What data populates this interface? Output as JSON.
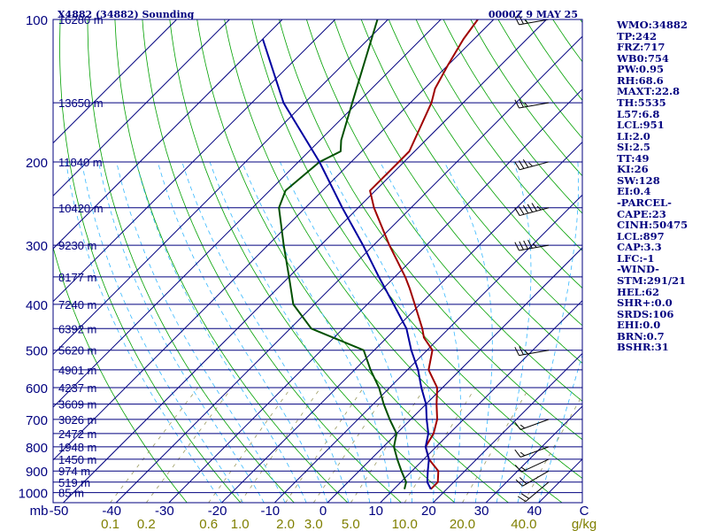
{
  "header": {
    "title": "X4882 (34882) Sounding",
    "time": "0000Z  9 MAY 25"
  },
  "colors": {
    "border": "#00007f",
    "isobar": "#00007f",
    "isotherm": "#00007f",
    "dry_adiabat": "#00a000",
    "moist_adiabat": "#36b8ff",
    "mixing_ratio": "#9a9a60",
    "temperature": "#a00000",
    "dewpoint": "#005000",
    "parcel": "#0000a0",
    "label": "#00007f"
  },
  "chart_data": {
    "type": "line",
    "subtype": "skew-t log-p sounding",
    "title": "X4882 (34882) Sounding",
    "valid_time": "0000Z  9 MAY 25",
    "y_axis": {
      "unit": "mb",
      "scale": "log",
      "range": [
        1050,
        100
      ],
      "ticks": [
        "100",
        "200",
        "300",
        "400",
        "500",
        "600",
        "700",
        "800",
        "900",
        "1000"
      ],
      "tick_values": [
        100,
        200,
        300,
        400,
        500,
        600,
        700,
        800,
        900,
        1000
      ]
    },
    "x_axis": {
      "unit": "C",
      "skewed": true,
      "range": [
        -50,
        50
      ],
      "ticks": [
        "-50",
        "-40",
        "-30",
        "-20",
        "-10",
        "0",
        "10",
        "20",
        "30",
        "40"
      ],
      "tick_values": [
        -50,
        -40,
        -30,
        -20,
        -10,
        0,
        10,
        20,
        30,
        40
      ]
    },
    "mixing_ratio_axis": {
      "unit": "g/kg",
      "ticks": [
        "0.1",
        "0.2",
        "0.6",
        "1.0",
        "2.0",
        "3.0",
        "5.0",
        "10.0",
        "20.0",
        "40.0"
      ],
      "tick_values": [
        0.1,
        0.2,
        0.6,
        1.0,
        2.0,
        3.0,
        5.0,
        10.0,
        20.0,
        40.0
      ]
    },
    "height_labels": [
      {
        "p": 100,
        "label": "16280 m"
      },
      {
        "p": 150,
        "label": "13650 m"
      },
      {
        "p": 200,
        "label": "11840 m"
      },
      {
        "p": 250,
        "label": "10420 m"
      },
      {
        "p": 300,
        "label": "9230 m"
      },
      {
        "p": 350,
        "label": "8177 m"
      },
      {
        "p": 400,
        "label": "7240 m"
      },
      {
        "p": 450,
        "label": "6392 m"
      },
      {
        "p": 500,
        "label": "5620 m"
      },
      {
        "p": 550,
        "label": "4901 m"
      },
      {
        "p": 600,
        "label": "4237 m"
      },
      {
        "p": 650,
        "label": "3609 m"
      },
      {
        "p": 700,
        "label": "3026 m"
      },
      {
        "p": 750,
        "label": "2472 m"
      },
      {
        "p": 800,
        "label": "1948 m"
      },
      {
        "p": 850,
        "label": "1450 m"
      },
      {
        "p": 900,
        "label": "974 m"
      },
      {
        "p": 950,
        "label": "519 m"
      },
      {
        "p": 1000,
        "label": "85 m"
      }
    ],
    "series": [
      {
        "key": "temperature",
        "points": [
          [
            983,
            17
          ],
          [
            950,
            17
          ],
          [
            900,
            15
          ],
          [
            850,
            11
          ],
          [
            800,
            8
          ],
          [
            750,
            7
          ],
          [
            700,
            5
          ],
          [
            650,
            2
          ],
          [
            600,
            -1
          ],
          [
            550,
            -6
          ],
          [
            500,
            -9
          ],
          [
            470,
            -13
          ],
          [
            450,
            -15
          ],
          [
            400,
            -21
          ],
          [
            370,
            -25
          ],
          [
            350,
            -28
          ],
          [
            300,
            -37
          ],
          [
            250,
            -47
          ],
          [
            230,
            -51
          ],
          [
            200,
            -51
          ],
          [
            190,
            -51
          ],
          [
            150,
            -56
          ],
          [
            140,
            -58
          ],
          [
            125,
            -60
          ],
          [
            110,
            -62
          ],
          [
            100,
            -63
          ]
        ]
      },
      {
        "key": "dewpoint",
        "points": [
          [
            983,
            12
          ],
          [
            950,
            11
          ],
          [
            900,
            8
          ],
          [
            850,
            5
          ],
          [
            800,
            2
          ],
          [
            750,
            0
          ],
          [
            700,
            -4
          ],
          [
            650,
            -8
          ],
          [
            600,
            -12
          ],
          [
            550,
            -17
          ],
          [
            500,
            -22
          ],
          [
            450,
            -36
          ],
          [
            400,
            -44
          ],
          [
            350,
            -50
          ],
          [
            300,
            -57
          ],
          [
            250,
            -65
          ],
          [
            230,
            -67
          ],
          [
            200,
            -66
          ],
          [
            190,
            -64
          ],
          [
            180,
            -66
          ],
          [
            150,
            -71
          ],
          [
            100,
            -82
          ]
        ]
      },
      {
        "key": "parcel",
        "points": [
          [
            983,
            17
          ],
          [
            950,
            15
          ],
          [
            900,
            13
          ],
          [
            850,
            11
          ],
          [
            800,
            8
          ],
          [
            750,
            6
          ],
          [
            700,
            3
          ],
          [
            650,
            0
          ],
          [
            600,
            -4
          ],
          [
            550,
            -8
          ],
          [
            500,
            -13
          ],
          [
            450,
            -18
          ],
          [
            400,
            -25
          ],
          [
            350,
            -33
          ],
          [
            300,
            -42
          ],
          [
            250,
            -53
          ],
          [
            200,
            -66
          ],
          [
            150,
            -84
          ],
          [
            110,
            -100
          ]
        ]
      }
    ],
    "winds": [
      {
        "p": 100,
        "dir": 260,
        "spd": 25
      },
      {
        "p": 150,
        "dir": 260,
        "spd": 25
      },
      {
        "p": 200,
        "dir": 255,
        "spd": 35
      },
      {
        "p": 250,
        "dir": 255,
        "spd": 55
      },
      {
        "p": 300,
        "dir": 260,
        "spd": 45
      },
      {
        "p": 500,
        "dir": 260,
        "spd": 25
      },
      {
        "p": 700,
        "dir": 250,
        "spd": 15
      },
      {
        "p": 800,
        "dir": 250,
        "spd": 15
      },
      {
        "p": 850,
        "dir": 245,
        "spd": 15
      },
      {
        "p": 900,
        "dir": 240,
        "spd": 20
      },
      {
        "p": 950,
        "dir": 230,
        "spd": 20
      }
    ],
    "grid": true
  },
  "indices": [
    "WMO:34882",
    "TP:242",
    "FRZ:717",
    "WB0:754",
    "PW:0.95",
    "RH:68.6",
    "MAXT:22.8",
    "TH:5535",
    "L57:6.8",
    "LCL:951",
    "LI:2.0",
    "SI:2.5",
    "TT:49",
    "KI:26",
    "SW:128",
    "EI:0.4",
    "-PARCEL-",
    "CAPE:23",
    "CINH:50475",
    "LCL:897",
    "CAP:3.3",
    "LFC:-1",
    "-WIND-",
    "STM:291/21",
    "HEL:62",
    "SHR+:0.0",
    "SRDS:106",
    "EHI:0.0",
    "BRN:0.7",
    "BSHR:31"
  ]
}
